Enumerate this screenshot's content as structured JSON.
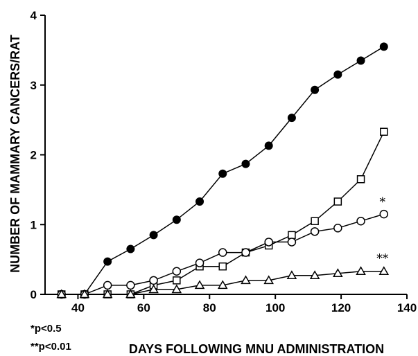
{
  "chart_data": {
    "type": "line",
    "xlabel": "DAYS FOLLOWING MNU ADMINISTRATION",
    "ylabel": "NUMBER OF MAMMARY CANCERS/RAT",
    "xlim": [
      30,
      140
    ],
    "ylim": [
      0,
      4
    ],
    "x_ticks": [
      40,
      60,
      80,
      100,
      120,
      140
    ],
    "y_ticks": [
      0,
      1,
      2,
      3,
      4
    ],
    "grid": false,
    "series": [
      {
        "marker": "filled-circle",
        "x": [
          35,
          42,
          49,
          56,
          63,
          70,
          77,
          84,
          91,
          98,
          105,
          112,
          119,
          126,
          133
        ],
        "y": [
          0,
          0,
          0.47,
          0.65,
          0.85,
          1.07,
          1.33,
          1.73,
          1.87,
          2.13,
          2.53,
          2.93,
          3.15,
          3.35,
          3.55
        ]
      },
      {
        "marker": "open-square",
        "x": [
          35,
          42,
          49,
          56,
          63,
          70,
          77,
          84,
          91,
          98,
          105,
          112,
          119,
          126,
          133
        ],
        "y": [
          0,
          0,
          0,
          0,
          0.13,
          0.2,
          0.4,
          0.4,
          0.6,
          0.7,
          0.85,
          1.05,
          1.33,
          1.65,
          2.33
        ]
      },
      {
        "marker": "open-circle",
        "x": [
          35,
          42,
          49,
          56,
          63,
          70,
          77,
          84,
          91,
          98,
          105,
          112,
          119,
          126,
          133
        ],
        "y": [
          0,
          0,
          0.13,
          0.13,
          0.2,
          0.33,
          0.45,
          0.6,
          0.6,
          0.75,
          0.75,
          0.9,
          0.95,
          1.05,
          1.15
        ]
      },
      {
        "marker": "open-triangle",
        "x": [
          35,
          42,
          49,
          56,
          63,
          70,
          77,
          84,
          91,
          98,
          105,
          112,
          119,
          126,
          133
        ],
        "y": [
          0,
          0,
          0,
          0,
          0.07,
          0.07,
          0.13,
          0.13,
          0.2,
          0.2,
          0.27,
          0.27,
          0.3,
          0.33,
          0.33
        ]
      }
    ],
    "annotations": [
      {
        "text": "*",
        "x": 133,
        "y": 1.33
      },
      {
        "text": "**",
        "x": 133,
        "y": 0.52
      }
    ],
    "footnotes": [
      "*p<0.5",
      "**p<0.01"
    ]
  }
}
